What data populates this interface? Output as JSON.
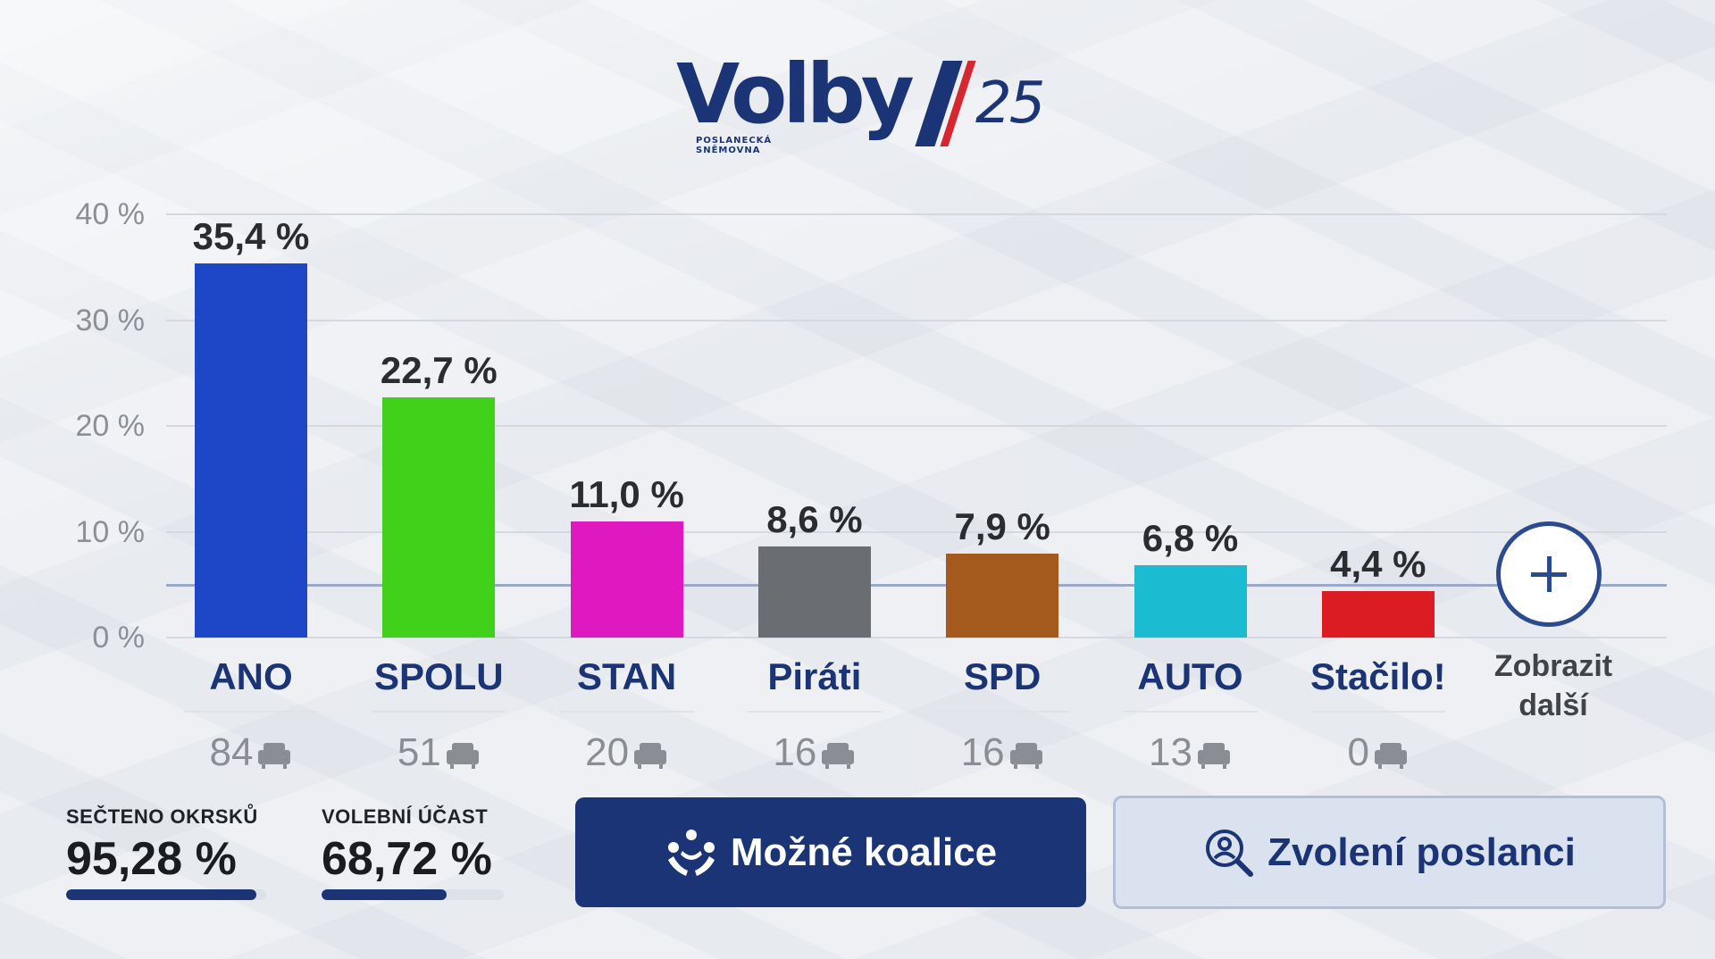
{
  "logo": {
    "word": "Volby",
    "number": "25",
    "subtitle": "POSLANECKÁ SNĚMOVNA"
  },
  "colors": {
    "brand_navy": "#1b3475",
    "brand_red": "#d8262e",
    "threshold_line": "#9aa8cc",
    "secondary_button_bg": "#dbe2ef"
  },
  "chart_data": {
    "type": "bar",
    "categories": [
      "ANO",
      "SPOLU",
      "STAN",
      "Piráti",
      "SPD",
      "AUTO",
      "Stačilo!"
    ],
    "values": [
      35.4,
      22.7,
      11.0,
      8.6,
      7.9,
      6.8,
      4.4
    ],
    "value_labels": [
      "35,4 %",
      "22,7 %",
      "11,0 %",
      "8,6 %",
      "7,9 %",
      "6,8 %",
      "4,4 %"
    ],
    "colors": [
      "#1d47c7",
      "#42d11b",
      "#de19c0",
      "#6a6e73",
      "#a45a1c",
      "#1bbcd2",
      "#dc1c23"
    ],
    "seats": [
      "84",
      "51",
      "20",
      "16",
      "16",
      "13",
      "0"
    ],
    "yticks": [
      "0 %",
      "10 %",
      "20 %",
      "30 %",
      "40 %"
    ],
    "ylim": [
      0,
      40
    ],
    "threshold": 5,
    "grid": true
  },
  "more": {
    "label_line1": "Zobrazit",
    "label_line2": "další",
    "icon": "plus-circle-icon"
  },
  "stats": {
    "counted": {
      "label": "SEČTENO OKRSKŮ",
      "value": "95,28 %",
      "fraction": 0.9528
    },
    "turnout": {
      "label": "VOLEBNÍ ÚČAST",
      "value": "68,72 %",
      "fraction": 0.6872
    }
  },
  "buttons": {
    "coalitions": {
      "label": "Možné koalice",
      "icon": "coalition-icon"
    },
    "deputies": {
      "label": "Zvolení poslanci",
      "icon": "person-search-icon"
    }
  }
}
